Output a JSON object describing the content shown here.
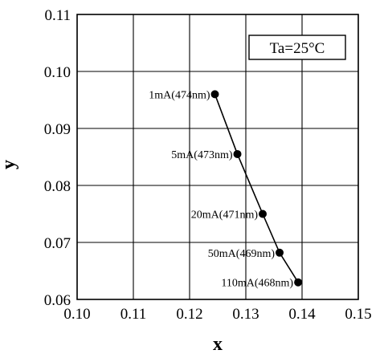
{
  "chart_data": {
    "type": "scatter",
    "title": "",
    "xlabel": "x",
    "ylabel": "y",
    "xlim": [
      0.1,
      0.15
    ],
    "ylim": [
      0.06,
      0.11
    ],
    "xticks": [
      "0.10",
      "0.11",
      "0.12",
      "0.13",
      "0.14",
      "0.15"
    ],
    "yticks": [
      "0.06",
      "0.07",
      "0.08",
      "0.09",
      "0.10",
      "0.11"
    ],
    "grid": true,
    "condition_label": "Ta=25°C",
    "condition_label_position": "top-right",
    "series": [
      {
        "connected": true,
        "color": "#000000",
        "points": [
          {
            "x": 0.1245,
            "y": 0.096,
            "label": "1mA(474nm)"
          },
          {
            "x": 0.1285,
            "y": 0.0855,
            "label": "5mA(473nm)"
          },
          {
            "x": 0.133,
            "y": 0.075,
            "label": "20mA(471nm)"
          },
          {
            "x": 0.136,
            "y": 0.0682,
            "label": "50mA(469nm)"
          },
          {
            "x": 0.1393,
            "y": 0.063,
            "label": "110mA(468nm)"
          }
        ]
      }
    ]
  }
}
